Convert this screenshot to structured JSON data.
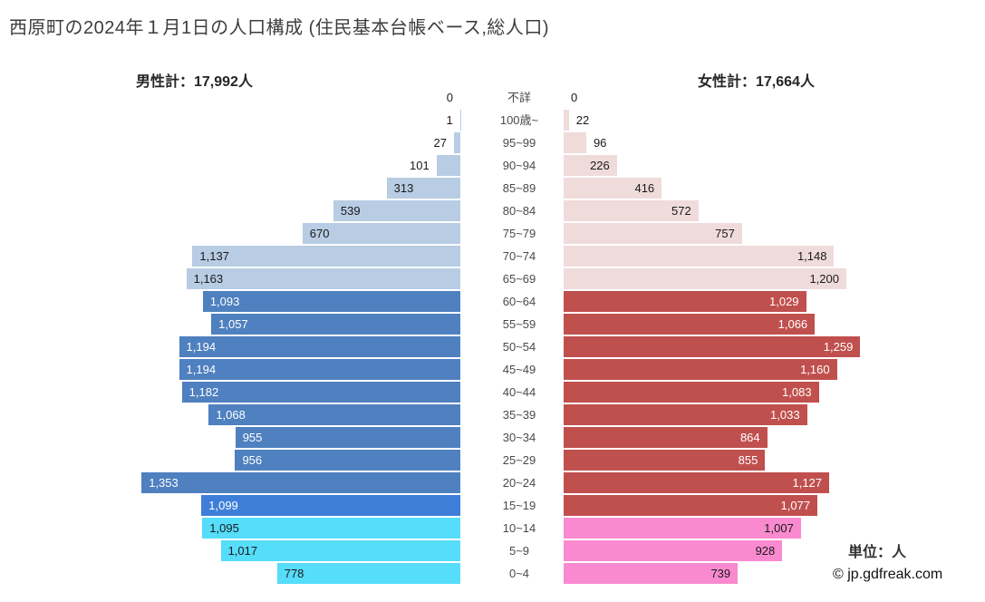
{
  "title": "西原町の2024年１月1日の人口構成 (住民基本台帳ベース,総人口)",
  "header": {
    "male_total": "男性計：17,992人",
    "female_total": "女性計：17,664人"
  },
  "footer": {
    "unit": "単位：人",
    "copyright": "© jp.gdfreak.com"
  },
  "colors": {
    "male_elderly": "#b8cce4",
    "male_adult": "#4f80bf",
    "male_teen": "#3e7ed8",
    "male_child": "#55ddfa",
    "female_elderly": "#f0dbdb",
    "female_adult": "#c0504e",
    "female_child": "#f98ad0",
    "label_dark": "#1a1a1a",
    "label_light": "#ffffff"
  },
  "chart_data": {
    "type": "bar",
    "subtype": "population-pyramid",
    "title": "西原町の2024年１月1日の人口構成 (住民基本台帳ベース,総人口)",
    "unit": "人",
    "legend_position": "none",
    "grid": false,
    "xmax": 1400,
    "categories": [
      "不詳",
      "100歳~",
      "95~99",
      "90~94",
      "85~89",
      "80~84",
      "75~79",
      "70~74",
      "65~69",
      "60~64",
      "55~59",
      "50~54",
      "45~49",
      "40~44",
      "35~39",
      "30~34",
      "25~29",
      "20~24",
      "15~19",
      "10~14",
      "5~9",
      "0~4"
    ],
    "series": [
      {
        "name": "男性",
        "total": 17992,
        "values": [
          0,
          1,
          27,
          101,
          313,
          539,
          670,
          1137,
          1163,
          1093,
          1057,
          1194,
          1194,
          1182,
          1068,
          955,
          956,
          1353,
          1099,
          1095,
          1017,
          778
        ]
      },
      {
        "name": "女性",
        "total": 17664,
        "values": [
          0,
          22,
          96,
          226,
          416,
          572,
          757,
          1148,
          1200,
          1029,
          1066,
          1259,
          1160,
          1083,
          1033,
          864,
          855,
          1127,
          1077,
          1007,
          928,
          739
        ]
      }
    ],
    "male_groups": [
      "elderly",
      "elderly",
      "elderly",
      "elderly",
      "elderly",
      "elderly",
      "elderly",
      "elderly",
      "elderly",
      "adult",
      "adult",
      "adult",
      "adult",
      "adult",
      "adult",
      "adult",
      "adult",
      "adult",
      "teen",
      "child",
      "child",
      "child"
    ],
    "female_groups": [
      "elderly",
      "elderly",
      "elderly",
      "elderly",
      "elderly",
      "elderly",
      "elderly",
      "elderly",
      "elderly",
      "adult",
      "adult",
      "adult",
      "adult",
      "adult",
      "adult",
      "adult",
      "adult",
      "adult",
      "adult",
      "child",
      "child",
      "child"
    ]
  }
}
